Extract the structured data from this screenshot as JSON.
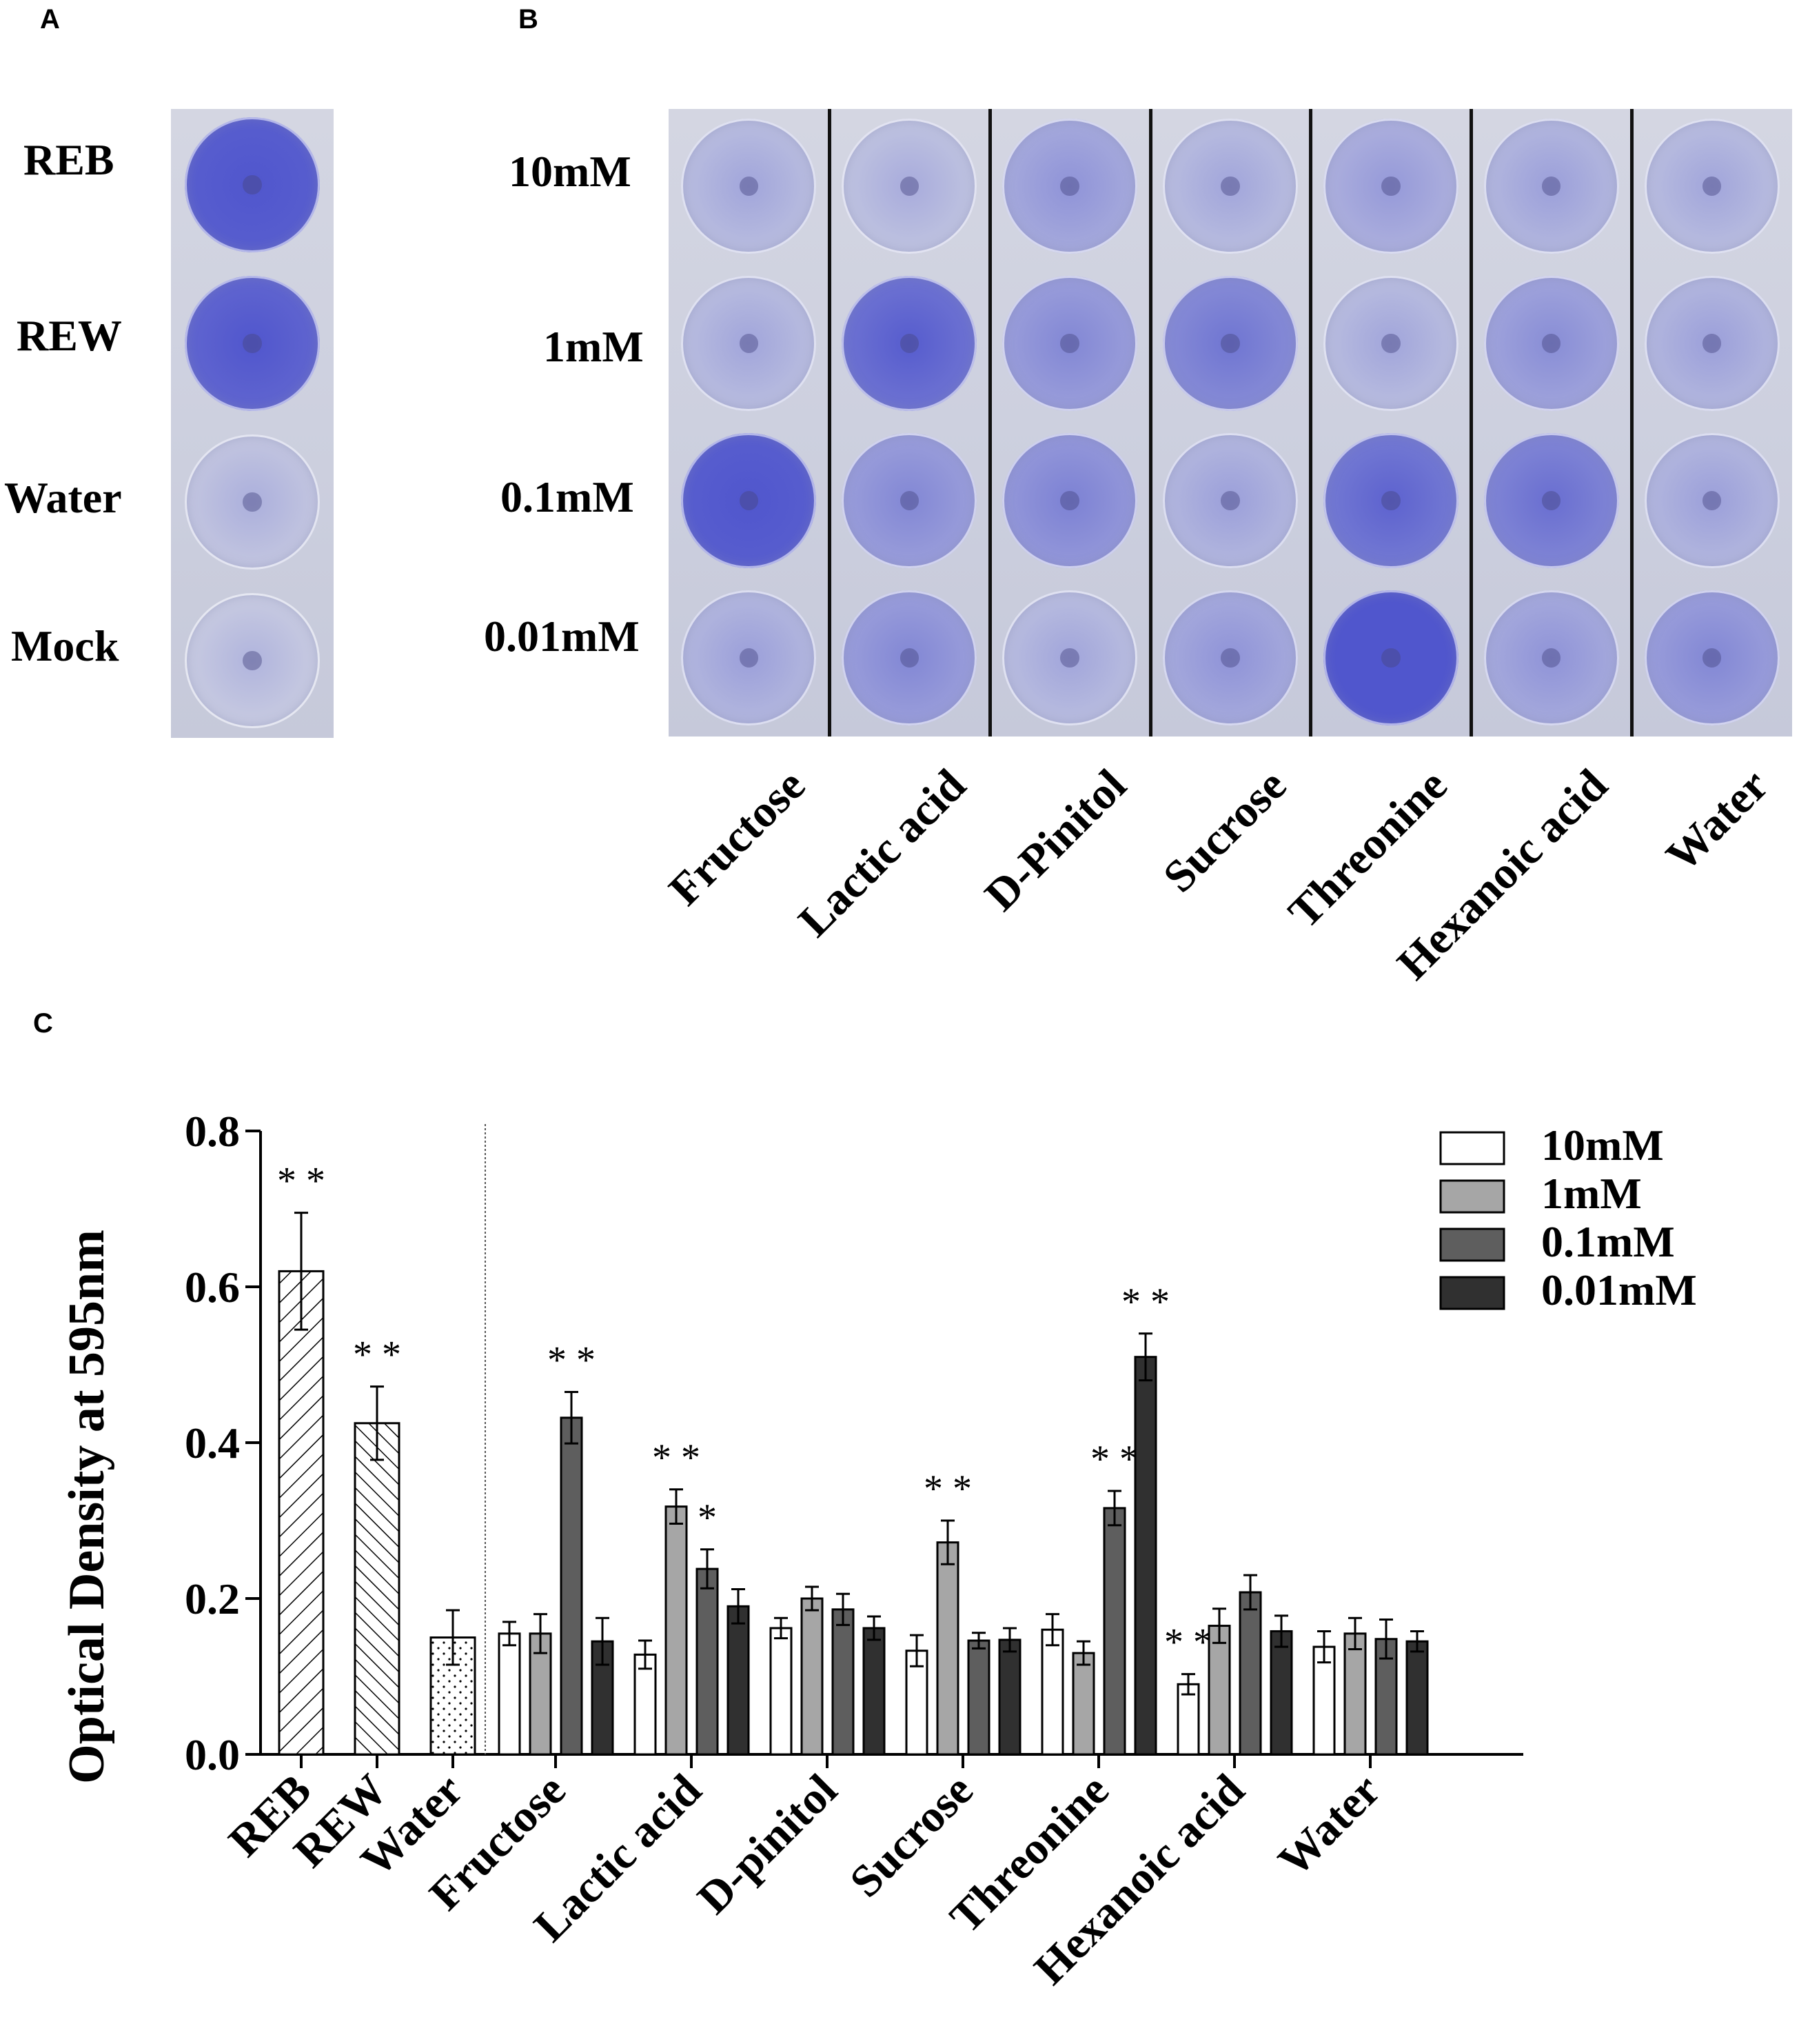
{
  "panels": {
    "a": "A",
    "b": "B",
    "c": "C"
  },
  "panel_a": {
    "rows": [
      "REB",
      "REW",
      "Water",
      "Mock"
    ],
    "stain": [
      0.95,
      0.9,
      0.12,
      0.08
    ]
  },
  "panel_b": {
    "rows": [
      "10mM",
      "1mM",
      "0.1mM",
      "0.01mM"
    ],
    "columns": [
      "Fructose",
      "Lactic acid",
      "D-Pinitol",
      "Sucrose",
      "Threonine",
      "Hexanoic acid",
      "Water"
    ],
    "stain": [
      [
        0.2,
        0.15,
        0.35,
        0.2,
        0.3,
        0.25,
        0.2
      ],
      [
        0.2,
        0.8,
        0.45,
        0.6,
        0.2,
        0.4,
        0.25
      ],
      [
        0.95,
        0.45,
        0.5,
        0.25,
        0.75,
        0.65,
        0.25
      ],
      [
        0.25,
        0.45,
        0.2,
        0.35,
        1.0,
        0.35,
        0.45
      ]
    ]
  },
  "colors": {
    "c10": "#ffffff",
    "c1": "#a6a6a6",
    "c01": "#5e5e5e",
    "c001": "#303030",
    "stain": "#5a5fc8"
  },
  "chart_data": {
    "type": "bar",
    "ylabel": "Optical Density at 595nm",
    "ylim": [
      0,
      0.8
    ],
    "yticks": [
      "0.0",
      "0.2",
      "0.4",
      "0.6",
      "0.8"
    ],
    "controls": [
      {
        "category": "REB",
        "value": 0.62,
        "error": 0.075,
        "pattern": "hatch-right",
        "sig": "* *"
      },
      {
        "category": "REW",
        "value": 0.425,
        "error": 0.047,
        "pattern": "hatch-left",
        "sig": "* *"
      },
      {
        "category": "Water",
        "value": 0.15,
        "error": 0.035,
        "pattern": "dots",
        "sig": ""
      }
    ],
    "categories": [
      "Fructose",
      "Lactic acid",
      "D-pinitol",
      "Sucrose",
      "Threonine",
      "Hexanoic acid",
      "Water"
    ],
    "series": [
      {
        "name": "10mM",
        "color": "#ffffff",
        "values": [
          0.155,
          0.128,
          0.162,
          0.133,
          0.16,
          0.09,
          0.138
        ],
        "errors": [
          0.015,
          0.018,
          0.013,
          0.02,
          0.02,
          0.013,
          0.02
        ],
        "sig": [
          "",
          "",
          "",
          "",
          "",
          "* *",
          ""
        ]
      },
      {
        "name": "1mM",
        "color": "#a6a6a6",
        "values": [
          0.155,
          0.318,
          0.2,
          0.272,
          0.13,
          0.165,
          0.155
        ],
        "errors": [
          0.025,
          0.022,
          0.015,
          0.028,
          0.015,
          0.022,
          0.02
        ],
        "sig": [
          "",
          "* *",
          "",
          "* *",
          "",
          "",
          ""
        ]
      },
      {
        "name": "0.1mM",
        "color": "#5e5e5e",
        "values": [
          0.432,
          0.238,
          0.186,
          0.146,
          0.316,
          0.208,
          0.148
        ],
        "errors": [
          0.033,
          0.025,
          0.02,
          0.01,
          0.022,
          0.022,
          0.025
        ],
        "sig": [
          "* *",
          "*",
          "",
          "",
          "* *",
          "",
          ""
        ]
      },
      {
        "name": "0.01mM",
        "color": "#303030",
        "values": [
          0.145,
          0.19,
          0.162,
          0.147,
          0.51,
          0.158,
          0.145
        ],
        "errors": [
          0.03,
          0.022,
          0.015,
          0.015,
          0.03,
          0.02,
          0.013
        ],
        "sig": [
          "",
          "",
          "",
          "",
          "* *",
          "",
          ""
        ]
      }
    ],
    "legend_position": "top-right"
  }
}
